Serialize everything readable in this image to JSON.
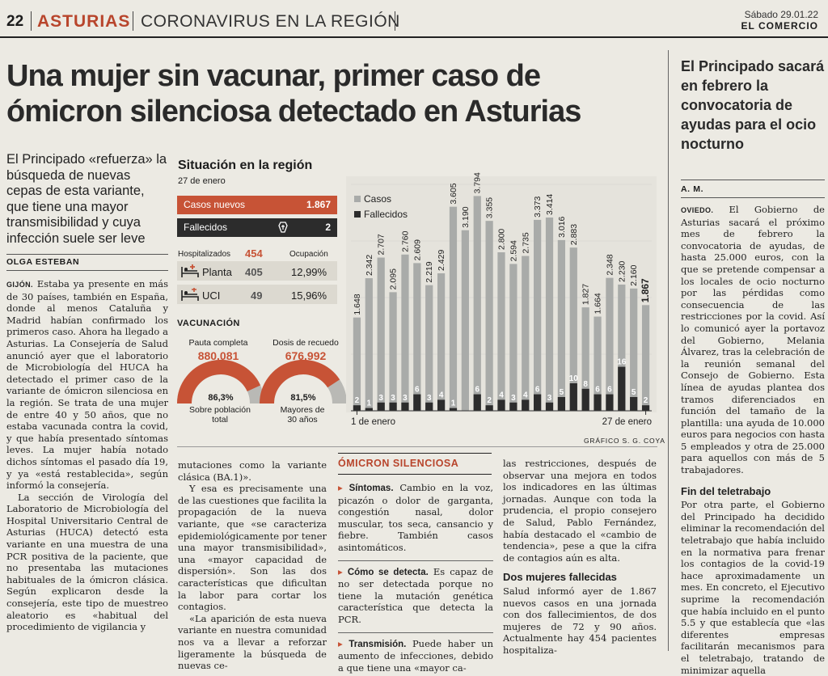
{
  "masthead": {
    "page_number": "22",
    "section": "ASTURIAS",
    "topic": "CORONAVIRUS EN LA REGIÓN",
    "date": "Sábado 29.01.22",
    "publication": "EL COMERCIO"
  },
  "article": {
    "headline": "Una mujer sin vacunar, primer caso de ómicron silenciosa detectado en Asturias",
    "subheading": "El Principado «refuerza» la búsqueda de nuevas cepas de esta variante, que tiene una mayor transmisibilidad y cuya infección suele ser leve",
    "author": "OLGA ESTEBAN",
    "col1_lead": "GIJÓN.",
    "col1_p1": "Estaba ya presente en más de 30 países, también en España, donde al menos Cataluña y Madrid habían confirmado los primeros caso. Ahora ha llegado a Asturias. La Consejería de Salud anunció ayer que el laboratorio de Microbiología del HUCA ha detectado el primer caso de la variante de ómicron silenciosa en la región. Se trata de una mujer de entre 40 y 50 años, que no estaba vacunada contra la covid, y que había presentado síntomas leves. La mujer había notado dichos síntomas el pasado día 19, y ya «está restablecida», según informó la consejería.",
    "col1_p2": "La sección de Virología del Laboratorio de Microbiología del Hospital Universitario Central de Asturias (HUCA) detectó esta variante en una muestra de una PCR positiva de la paciente, que no presentaba las mutaciones habituales de la ómicron clásica. Según explicaron desde la consejería, este tipo de muestreo aleatorio es «habitual del procedimiento de vigilancia y",
    "col2_p1": "mutaciones como la variante clásica (BA.1)».",
    "col2_p2": "Y esa es precisamente una de las cuestiones que facilita la propagación de la nueva variante, que «se caracteriza epidemiológicamente por tener una mayor transmisibilidad», una «mayor capacidad de dispersión». Son las dos características que dificultan la labor para cortar los contagios.",
    "col2_p3": "«La aparición de esta nueva variante en nuestra comunidad nos va a llevar a reforzar ligeramente la búsqueda de nuevas ce-",
    "box_title": "ÓMICRON SILENCIOSA",
    "box_item1_head": "Síntomas.",
    "box_item1_text": "Cambio en la voz, picazón o dolor de garganta, congestión nasal, dolor muscular, tos seca, cansancio y fiebre. También casos asintomáticos.",
    "box_item2_head": "Cómo se detecta.",
    "box_item2_text": "Es capaz de no ser detectada porque no tiene la mutación genética característica que detecta la PCR.",
    "box_item3_head": "Transmisión.",
    "box_item3_text": "Puede haber un aumento de infecciones, debido a que tiene una «mayor ca-",
    "col4_p1": "las restricciones, después de observar una mejora en todos los indicadores en las últimas jornadas. Aunque con toda la prudencia, el propio consejero de Salud, Pablo Fernández, había destacado el «cambio de tendencia», pese a que la cifra de contagios aún es alta.",
    "col4_subhead": "Dos mujeres fallecidas",
    "col4_p2": "Salud informó ayer de 1.867 nuevos casos en una jornada con dos fallecimientos, de dos mujeres de 72 y 90 años. Actualmente hay 454 pacientes hospitaliza-"
  },
  "sidebar_article": {
    "headline": "El Principado sacará en febrero la convocatoria de ayudas para el ocio nocturno",
    "author": "A. M.",
    "lead": "OVIEDO.",
    "p1": "El Gobierno de Asturias sacará el próximo mes de febrero la convocatoria de ayudas, de hasta 25.000 euros, con la que se pretende compensar a los locales de ocio nocturno por las pérdidas como consecuencia de las restricciones por la covid. Así lo comunicó ayer la portavoz del Gobierno, Melania Álvarez, tras la celebración de la reunión semanal del Consejo de Gobierno. Esta línea de ayudas plantea dos tramos diferenciados en función del tamaño de la plantilla: una ayuda de 10.000 euros para negocios con hasta 5 empleados y otra de 25.000 para aquellos con más de 5 trabajadores.",
    "subhead": "Fin del teletrabajo",
    "p2": "Por otra parte, el Gobierno del Principado ha decidido eliminar la recomendación del teletrabajo que había incluido en la normativa para frenar los contagios de la covid-19 hace aproximadamente un mes. En concreto, el Ejecutivo suprime la recomendación que había incluido en el punto 5.5 y que establecía que «las diferentes empresas facilitarán mecanismos para el teletrabajo, tratando de minimizar aquella"
  },
  "infographic": {
    "title": "Situación en la región",
    "date": "27 de enero",
    "casos_label": "Casos nuevos",
    "casos_value": "1.867",
    "fallecidos_label": "Fallecidos",
    "fallecidos_value": "2",
    "hosp_label": "Hospitalizados",
    "hosp_value": "454",
    "ocup_label": "Ocupación",
    "planta_label": "Planta",
    "planta_value": "405",
    "planta_pct": "12,99%",
    "uci_label": "UCI",
    "uci_value": "49",
    "uci_pct": "15,96%",
    "vac_title": "VACUNACIÓN",
    "pauta_label": "Pauta completa",
    "pauta_value": "880.081",
    "pauta_pct": "86,3%",
    "pauta_pct_value": 86.3,
    "pauta_caption_1": "Sobre población",
    "pauta_caption_2": "total",
    "recuerdo_label": "Dosis de recuedo",
    "recuerdo_value": "676.992",
    "recuerdo_pct": "81,5%",
    "recuerdo_pct_value": 81.5,
    "recuerdo_caption_1": "Mayores de",
    "recuerdo_caption_2": "30 años",
    "credit": "GRÁFICO S. G. COYA",
    "colors": {
      "casos": "#c75336",
      "fallecidos": "#2c2c2c",
      "bars_casos": "#a9aba9",
      "bars_fall": "#2c2c2c"
    }
  },
  "chart_data": {
    "type": "bar",
    "x_start_label": "1 de enero",
    "x_end_label": "27 de enero",
    "legend": [
      "Casos",
      "Fallecidos"
    ],
    "legend_placement": "top-left",
    "series": [
      {
        "name": "Casos",
        "values": [
          1648,
          2342,
          2707,
          2095,
          2760,
          2609,
          2219,
          2429,
          3605,
          3190,
          3794,
          3355,
          2800,
          2594,
          2735,
          3373,
          3414,
          3016,
          2883,
          1827,
          1664,
          2348,
          2230,
          2160,
          1867
        ],
        "labels": [
          "1.648",
          "2.342",
          "2.707",
          "2.095",
          "2.760",
          "2.609",
          "2.219",
          "2.429",
          "3.605",
          "3.190",
          "3.794",
          "3.355",
          "2.800",
          "2.594",
          "2.735",
          "3.373",
          "3.414",
          "3.016",
          "2.883",
          "1.827",
          "1.664",
          "2.348",
          "2.230",
          "2.160",
          "1.867"
        ]
      },
      {
        "name": "Fallecidos",
        "values": [
          2,
          1,
          3,
          3,
          3,
          6,
          3,
          4,
          1,
          0,
          6,
          2,
          4,
          3,
          4,
          6,
          3,
          5,
          10,
          8,
          6,
          6,
          16,
          5,
          2
        ]
      }
    ],
    "ylim": [
      0,
      4000
    ],
    "grid": true
  }
}
